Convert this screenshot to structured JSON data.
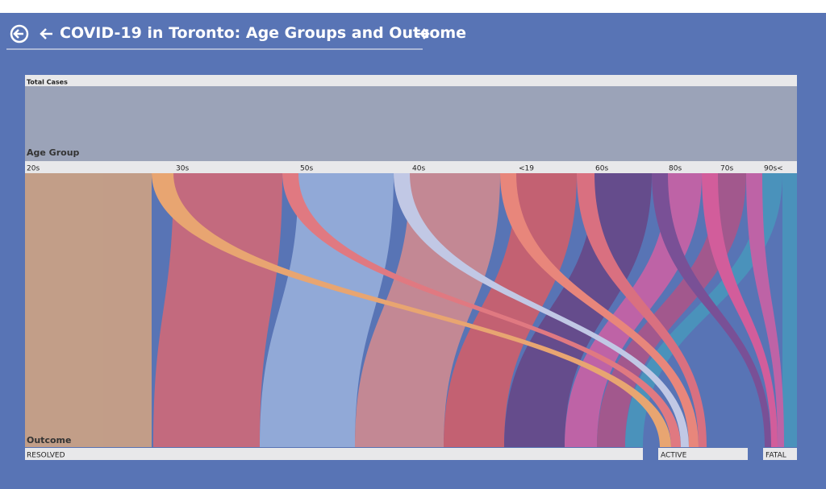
{
  "header": {
    "title": "COVID-19 in Toronto: Age Groups and Outcome"
  },
  "visual": {
    "total_label": "Total Cases",
    "age_group_label": "Age Group",
    "age_groups": [
      "20s",
      "30s",
      "50s",
      "40s",
      "<19",
      "60s",
      "80s",
      "70s",
      "90s<"
    ],
    "outcome_label": "Outcome",
    "outcomes": [
      "RESOLVED",
      "ACTIVE",
      "FATAL"
    ]
  }
}
